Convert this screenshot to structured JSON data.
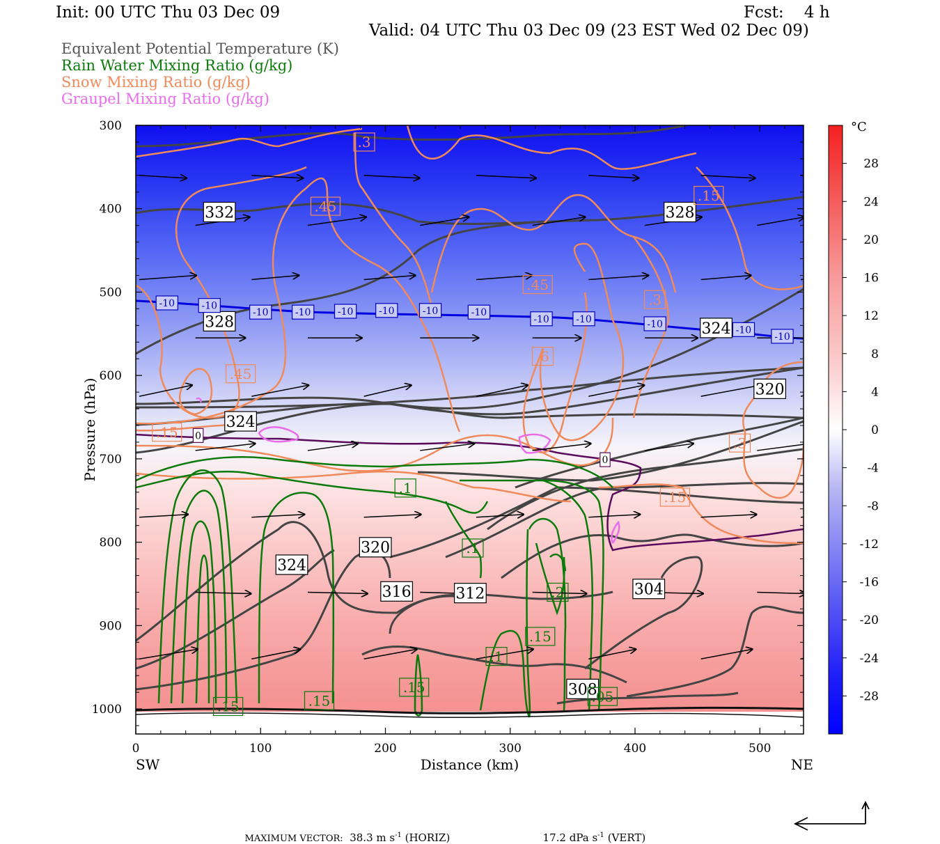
{
  "header": {
    "init": "Init: 00 UTC Thu 03 Dec 09",
    "fcst": "Fcst:    4 h",
    "valid": "Valid: 04 UTC Thu 03 Dec 09 (23 EST Wed 02 Dec 09)"
  },
  "legend": [
    {
      "label": "Equivalent Potential Temperature (K)",
      "color": "#555555"
    },
    {
      "label": "Rain Water Mixing Ratio (g/kg)",
      "color": "#0a7a0a"
    },
    {
      "label": "Snow Mixing Ratio (g/kg)",
      "color": "#f08a5a"
    },
    {
      "label": "Graupel Mixing Ratio (g/kg)",
      "color": "#ea6cea"
    }
  ],
  "footer": {
    "max_vector_label": "MAXIMUM VECTOR:",
    "horiz": "38.3 m s",
    "horiz_unit": "(HORIZ)",
    "vert": "17.2 dPa s",
    "vert_unit": "(VERT)",
    "exp": "-1"
  },
  "chart_data": {
    "type": "cross-section",
    "xlabel": "Distance (km)",
    "ylabel": "Pressure (hPa)",
    "xlim": [
      0,
      535
    ],
    "ylim": [
      1030,
      300
    ],
    "x_ticks": [
      0,
      100,
      200,
      300,
      400,
      500
    ],
    "y_ticks": [
      300,
      400,
      500,
      600,
      700,
      800,
      900,
      1000
    ],
    "x_end_labels": {
      "left": "SW",
      "right": "NE"
    },
    "colorbar": {
      "unit": "°C",
      "ticks": [
        28,
        24,
        20,
        16,
        12,
        8,
        4,
        0,
        -4,
        -8,
        -12,
        -16,
        -20,
        -24,
        -28
      ],
      "range": [
        32,
        -32
      ]
    },
    "temperature_bands": [
      {
        "p": 300,
        "t": -32
      },
      {
        "p": 380,
        "t": -28
      },
      {
        "p": 450,
        "t": -22
      },
      {
        "p": 520,
        "t": -14
      },
      {
        "p": 580,
        "t": -8
      },
      {
        "p": 640,
        "t": -3
      },
      {
        "p": 690,
        "t": 0
      },
      {
        "p": 740,
        "t": 4
      },
      {
        "p": 820,
        "t": 8
      },
      {
        "p": 900,
        "t": 12
      },
      {
        "p": 1000,
        "t": 16
      },
      {
        "p": 1030,
        "t": 17
      }
    ],
    "theta_e_labels": [
      {
        "text": "332",
        "x": 67,
        "p": 404
      },
      {
        "text": "328",
        "x": 436,
        "p": 404
      },
      {
        "text": "328",
        "x": 67,
        "p": 535
      },
      {
        "text": "324",
        "x": 465,
        "p": 543
      },
      {
        "text": "324",
        "x": 84,
        "p": 655
      },
      {
        "text": "320",
        "x": 508,
        "p": 616
      },
      {
        "text": "324",
        "x": 125,
        "p": 827
      },
      {
        "text": "320",
        "x": 192,
        "p": 806
      },
      {
        "text": "316",
        "x": 209,
        "p": 859
      },
      {
        "text": "312",
        "x": 268,
        "p": 861
      },
      {
        "text": "308",
        "x": 358,
        "p": 976
      },
      {
        "text": "304",
        "x": 411,
        "p": 856
      }
    ],
    "rain_labels": [
      {
        "text": ".1",
        "x": 216,
        "p": 735
      },
      {
        "text": ".1",
        "x": 270,
        "p": 807
      },
      {
        "text": ".2",
        "x": 338,
        "p": 860
      },
      {
        "text": ".15",
        "x": 324,
        "p": 913
      },
      {
        "text": ".1",
        "x": 289,
        "p": 937
      },
      {
        "text": ".15",
        "x": 223,
        "p": 974
      },
      {
        "text": ".15",
        "x": 147,
        "p": 990
      },
      {
        "text": ".15",
        "x": 74,
        "p": 997
      },
      {
        "text": ".05",
        "x": 374,
        "p": 985
      }
    ],
    "snow_labels": [
      {
        "text": ".3",
        "x": 183,
        "p": 320
      },
      {
        "text": ".45",
        "x": 152,
        "p": 397
      },
      {
        "text": ".15",
        "x": 459,
        "p": 384
      },
      {
        "text": ".45",
        "x": 322,
        "p": 491
      },
      {
        "text": ".3",
        "x": 416,
        "p": 509
      },
      {
        "text": ".6",
        "x": 326,
        "p": 577
      },
      {
        "text": ".45",
        "x": 84,
        "p": 598
      },
      {
        "text": ".15",
        "x": 25,
        "p": 668
      },
      {
        "text": ".3",
        "x": 484,
        "p": 681
      },
      {
        "text": ".15",
        "x": 432,
        "p": 746
      }
    ],
    "temp_labels": [
      {
        "text": "-10",
        "x": 25,
        "p": 513
      },
      {
        "text": "-10",
        "x": 59,
        "p": 516
      },
      {
        "text": "-10",
        "x": 100,
        "p": 524
      },
      {
        "text": "-10",
        "x": 134,
        "p": 524
      },
      {
        "text": "-10",
        "x": 168,
        "p": 523
      },
      {
        "text": "-10",
        "x": 201,
        "p": 522
      },
      {
        "text": "-10",
        "x": 236,
        "p": 522
      },
      {
        "text": "-10",
        "x": 275,
        "p": 524
      },
      {
        "text": "-10",
        "x": 325,
        "p": 532
      },
      {
        "text": "-10",
        "x": 359,
        "p": 532
      },
      {
        "text": "-10",
        "x": 416,
        "p": 538
      },
      {
        "text": "-10",
        "x": 487,
        "p": 545
      },
      {
        "text": "-10",
        "x": 518,
        "p": 553
      },
      {
        "text": "0",
        "x": 50,
        "p": 672
      },
      {
        "text": "0",
        "x": 376,
        "p": 701
      }
    ]
  }
}
